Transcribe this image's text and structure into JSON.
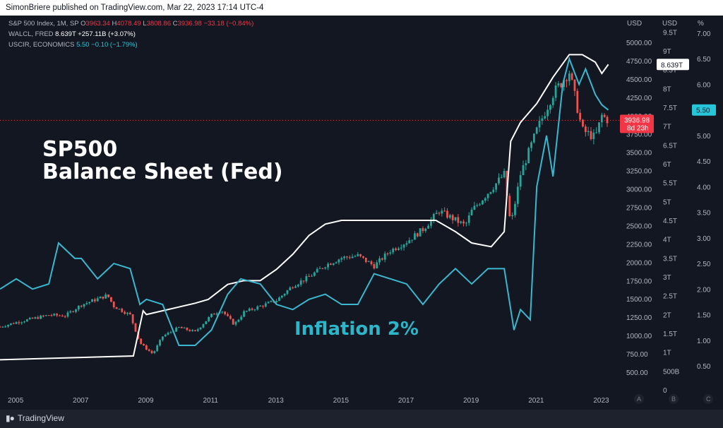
{
  "header": {
    "published": "SimonBriere published on TradingView.com, Mar 22, 2023 17:14 UTC-4"
  },
  "legend": {
    "sp500": {
      "name": "S&P 500 Index, 1M, SP",
      "o_label": "O",
      "o": "3963.34",
      "h_label": "H",
      "h": "4078.49",
      "l_label": "L",
      "l": "3808.86",
      "c_label": "C",
      "c": "3936.98",
      "change": "−33.18 (−0.84%)"
    },
    "walcl": {
      "name": "WALCL, FRED",
      "value": "8.639T",
      "change": "+257.11B (+3.07%)"
    },
    "uscir": {
      "name": "USCIR, ECONOMICS",
      "value": "5.50",
      "change": "−0.10 (−1.79%)"
    }
  },
  "overlay": {
    "line1": "SP500",
    "line2": "Balance Sheet (Fed)",
    "inflation": "Inflation 2%"
  },
  "axes": {
    "usd_head": "USD",
    "usd2_head": "USD",
    "pct_head": "%",
    "price_ticks": [
      "5000.00",
      "4750.00",
      "4500.00",
      "4250.00",
      "4000.00",
      "3750.00",
      "3500.00",
      "3250.00",
      "3000.00",
      "2750.00",
      "2500.00",
      "2250.00",
      "2000.00",
      "1750.00",
      "1500.00",
      "1250.00",
      "1000.00",
      "750.00",
      "500.00"
    ],
    "bs_ticks": [
      "9.5T",
      "9T",
      "8.5T",
      "8T",
      "7.5T",
      "7T",
      "6.5T",
      "6T",
      "5.5T",
      "5T",
      "4.5T",
      "4T",
      "3.5T",
      "3T",
      "2.5T",
      "2T",
      "1.5T",
      "1T",
      "500B",
      "0"
    ],
    "pct_ticks": [
      "7.00",
      "6.50",
      "6.00",
      "5.50",
      "5.00",
      "4.50",
      "4.00",
      "3.50",
      "3.00",
      "2.50",
      "2.00",
      "1.50",
      "1.00",
      "0.50"
    ],
    "x_ticks": [
      "2005",
      "2007",
      "2009",
      "2011",
      "2013",
      "2015",
      "2017",
      "2019",
      "2021",
      "2023"
    ],
    "bottom_letters": [
      "A",
      "B",
      "C"
    ],
    "badges": {
      "price": "3936.98",
      "countdown": "8d 23h",
      "bs": "8.639T",
      "pct": "5.50"
    }
  },
  "footer": {
    "brand": "TradingView"
  },
  "colors": {
    "background": "#131722",
    "sp500_up": "#26a69a",
    "sp500_down": "#ef5350",
    "walcl": "#ffffff",
    "uscir": "#3ab8cf",
    "price_badge": "#f23645",
    "pct_badge": "#26c6da"
  },
  "chart_data": {
    "type": "line",
    "series": [
      {
        "name": "S&P 500 Index, 1M, SP",
        "axis": "USD (left scale)",
        "x": [
          2004.5,
          2005.0,
          2005.5,
          2006.0,
          2006.5,
          2007.0,
          2007.5,
          2007.8,
          2008.0,
          2008.5,
          2008.8,
          2009.0,
          2009.2,
          2009.5,
          2010.0,
          2010.5,
          2011.0,
          2011.3,
          2011.7,
          2012.0,
          2012.5,
          2013.0,
          2013.5,
          2014.0,
          2014.5,
          2015.0,
          2015.5,
          2016.0,
          2016.5,
          2017.0,
          2017.5,
          2018.0,
          2018.8,
          2019.0,
          2019.5,
          2020.0,
          2020.2,
          2020.5,
          2021.0,
          2021.5,
          2022.0,
          2022.4,
          2022.8,
          2023.0,
          2023.2
        ],
        "y": [
          1120,
          1180,
          1230,
          1280,
          1270,
          1420,
          1500,
          1550,
          1400,
          1280,
          900,
          820,
          750,
          990,
          1110,
          1050,
          1280,
          1350,
          1150,
          1320,
          1400,
          1480,
          1680,
          1800,
          1960,
          2060,
          2090,
          1950,
          2160,
          2280,
          2450,
          2700,
          2500,
          2700,
          2950,
          3200,
          2500,
          3200,
          3800,
          4300,
          4600,
          3800,
          3700,
          4000,
          3937
        ],
        "current_value": 3936.98
      },
      {
        "name": "WALCL, FRED",
        "axis": "USD (balance sheet scale)",
        "x": [
          2004.5,
          2008.6,
          2008.9,
          2009.0,
          2009.5,
          2010.0,
          2010.5,
          2010.9,
          2011.5,
          2012.0,
          2012.5,
          2013.0,
          2013.5,
          2014.0,
          2014.5,
          2015.0,
          2016.0,
          2017.0,
          2017.9,
          2018.5,
          2019.0,
          2019.6,
          2020.0,
          2020.2,
          2020.5,
          2021.0,
          2021.5,
          2022.0,
          2022.4,
          2022.8,
          2023.0,
          2023.2
        ],
        "y": [
          0.8,
          0.9,
          2.1,
          2.0,
          2.1,
          2.2,
          2.3,
          2.4,
          2.8,
          2.9,
          2.9,
          3.2,
          3.6,
          4.1,
          4.4,
          4.5,
          4.5,
          4.5,
          4.5,
          4.2,
          3.9,
          3.8,
          4.2,
          6.6,
          7.1,
          7.6,
          8.3,
          8.9,
          8.9,
          8.7,
          8.4,
          8.639
        ],
        "current_value": 8.639
      },
      {
        "name": "USCIR, ECONOMICS",
        "axis": "%",
        "x": [
          2004.5,
          2005.0,
          2005.5,
          2006.0,
          2006.3,
          2006.8,
          2007.0,
          2007.5,
          2008.0,
          2008.5,
          2008.8,
          2009.0,
          2009.5,
          2010.0,
          2010.5,
          2011.0,
          2011.5,
          2011.9,
          2012.5,
          2013.0,
          2013.5,
          2014.0,
          2014.5,
          2015.0,
          2015.5,
          2016.0,
          2016.5,
          2017.0,
          2017.5,
          2018.0,
          2018.5,
          2019.0,
          2019.5,
          2020.0,
          2020.3,
          2020.5,
          2020.8,
          2021.0,
          2021.3,
          2021.5,
          2021.8,
          2022.0,
          2022.3,
          2022.5,
          2022.8,
          2023.0,
          2023.2
        ],
        "y": [
          2.0,
          2.2,
          2.0,
          2.1,
          2.9,
          2.6,
          2.6,
          2.2,
          2.5,
          2.4,
          1.7,
          1.8,
          1.7,
          0.9,
          0.9,
          1.2,
          1.9,
          2.2,
          2.1,
          1.7,
          1.6,
          1.8,
          1.9,
          1.7,
          1.7,
          2.3,
          2.2,
          2.1,
          1.7,
          2.1,
          2.4,
          2.1,
          2.4,
          2.4,
          1.2,
          1.6,
          1.4,
          4.0,
          5.0,
          4.2,
          6.0,
          6.5,
          6.0,
          6.3,
          5.8,
          5.6,
          5.5
        ],
        "current_value": 5.5
      }
    ],
    "x_range": [
      2004.5,
      2023.6
    ],
    "y_ranges": {
      "usd": [
        330,
        5150
      ],
      "balance_sheet_T": [
        0,
        9.7
      ],
      "pct": [
        0,
        7.1
      ]
    },
    "grid": false,
    "legend": "top-left"
  }
}
